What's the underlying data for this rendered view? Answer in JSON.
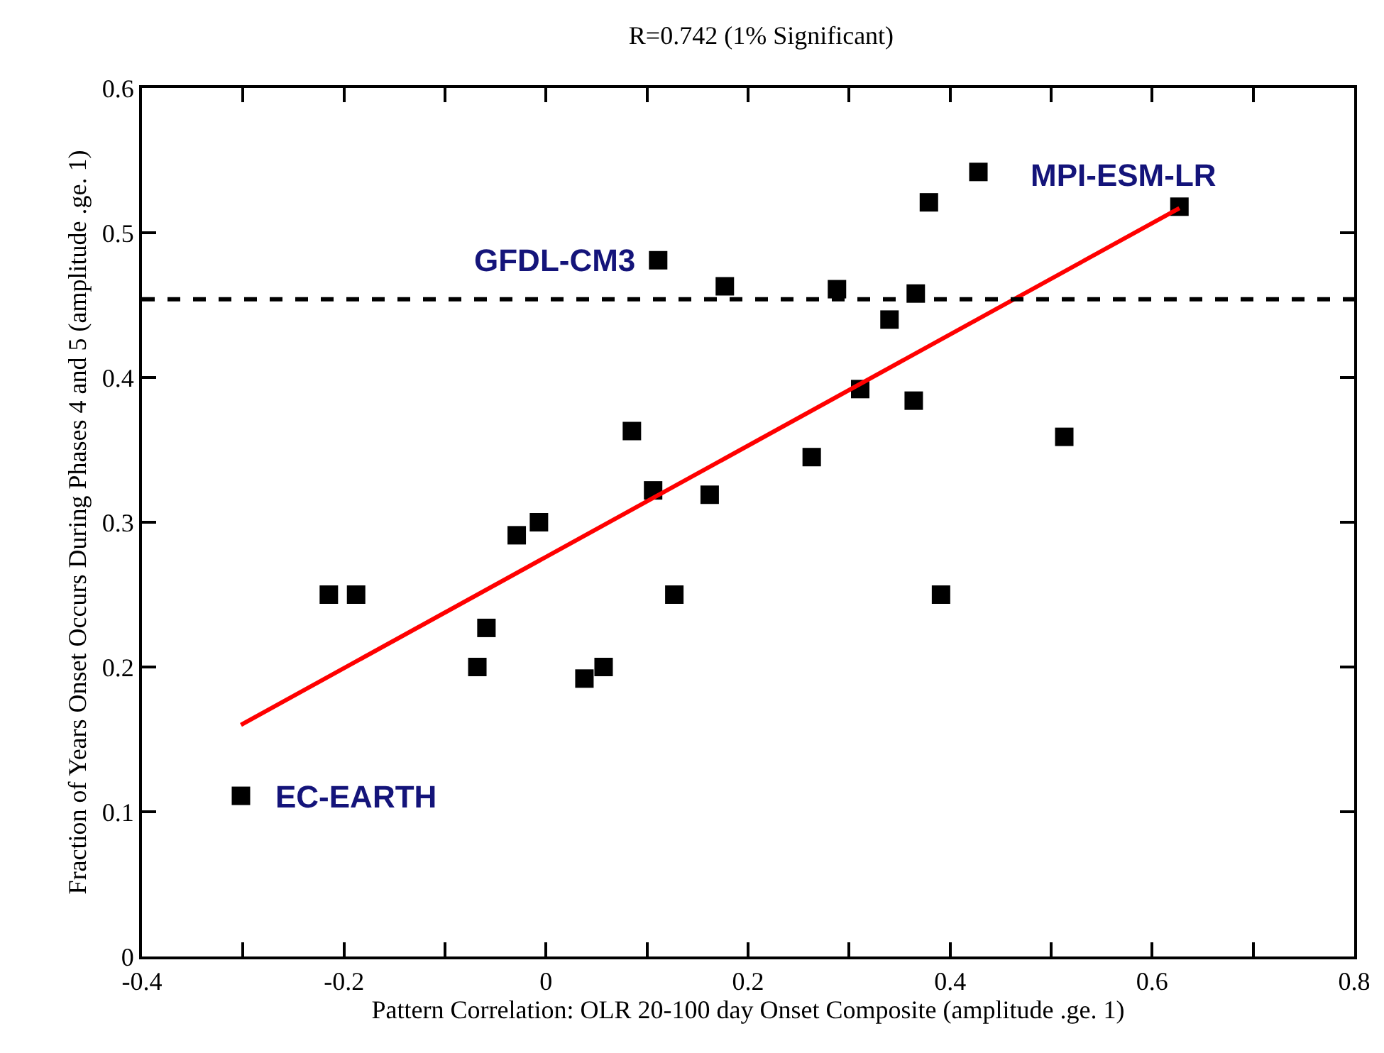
{
  "chart_data": {
    "type": "scatter",
    "title": "R=0.742 (1% Significant)",
    "xlabel": "Pattern Correlation: OLR 20-100 day Onset Composite (amplitude .ge. 1)",
    "ylabel": "Fraction of Years Onset Occurs During Phases 4 and 5 (amplitude .ge. 1)",
    "xlim": [
      -0.4,
      0.8
    ],
    "ylim": [
      0,
      0.6
    ],
    "xticks": [
      -0.4,
      {
        "value": -0.3,
        "label": null
      },
      -0.2,
      {
        "value": -0.1,
        "label": null
      },
      0,
      {
        "value": 0.1,
        "label": null
      },
      0.2,
      {
        "value": 0.3,
        "label": null
      },
      0.4,
      {
        "value": 0.5,
        "label": null
      },
      0.6,
      {
        "value": 0.7,
        "label": null
      },
      0.8
    ],
    "yticks": [
      0,
      0.1,
      0.2,
      0.3,
      0.4,
      0.5,
      0.6
    ],
    "series": [
      {
        "color": "#000000",
        "marker": "square",
        "x": [
          -0.302,
          -0.215,
          -0.188,
          -0.068,
          -0.059,
          -0.029,
          -0.007,
          0.038,
          0.057,
          0.085,
          0.106,
          0.111,
          0.127,
          0.162,
          0.177,
          0.263,
          0.288,
          0.311,
          0.34,
          0.364,
          0.366,
          0.379,
          0.391,
          0.428,
          0.513,
          0.627
        ],
        "values": [
          0.111,
          0.25,
          0.25,
          0.2,
          0.227,
          0.291,
          0.3,
          0.192,
          0.2,
          0.363,
          0.322,
          0.481,
          0.25,
          0.319,
          0.463,
          0.345,
          0.461,
          0.392,
          0.44,
          0.384,
          0.458,
          0.521,
          0.25,
          0.542,
          0.359,
          0.518
        ]
      },
      {
        "type": "line",
        "color": "#ff0000",
        "marker": "none",
        "line_style": "solid",
        "x": [
          -0.302,
          0.627
        ],
        "values": [
          0.16,
          0.517
        ]
      }
    ],
    "ref_lines": [
      {
        "axis": "y",
        "value": 0.454,
        "color": "#000000",
        "line_style": "dashed"
      }
    ],
    "annotations": [
      {
        "text": "GFDL-CM3",
        "x": 0.111,
        "y": 0.481
      },
      {
        "text": "EC-EARTH",
        "x": -0.302,
        "y": 0.111
      },
      {
        "text": "MPI-ESM-LR",
        "x": 0.627,
        "y": 0.518
      }
    ]
  }
}
